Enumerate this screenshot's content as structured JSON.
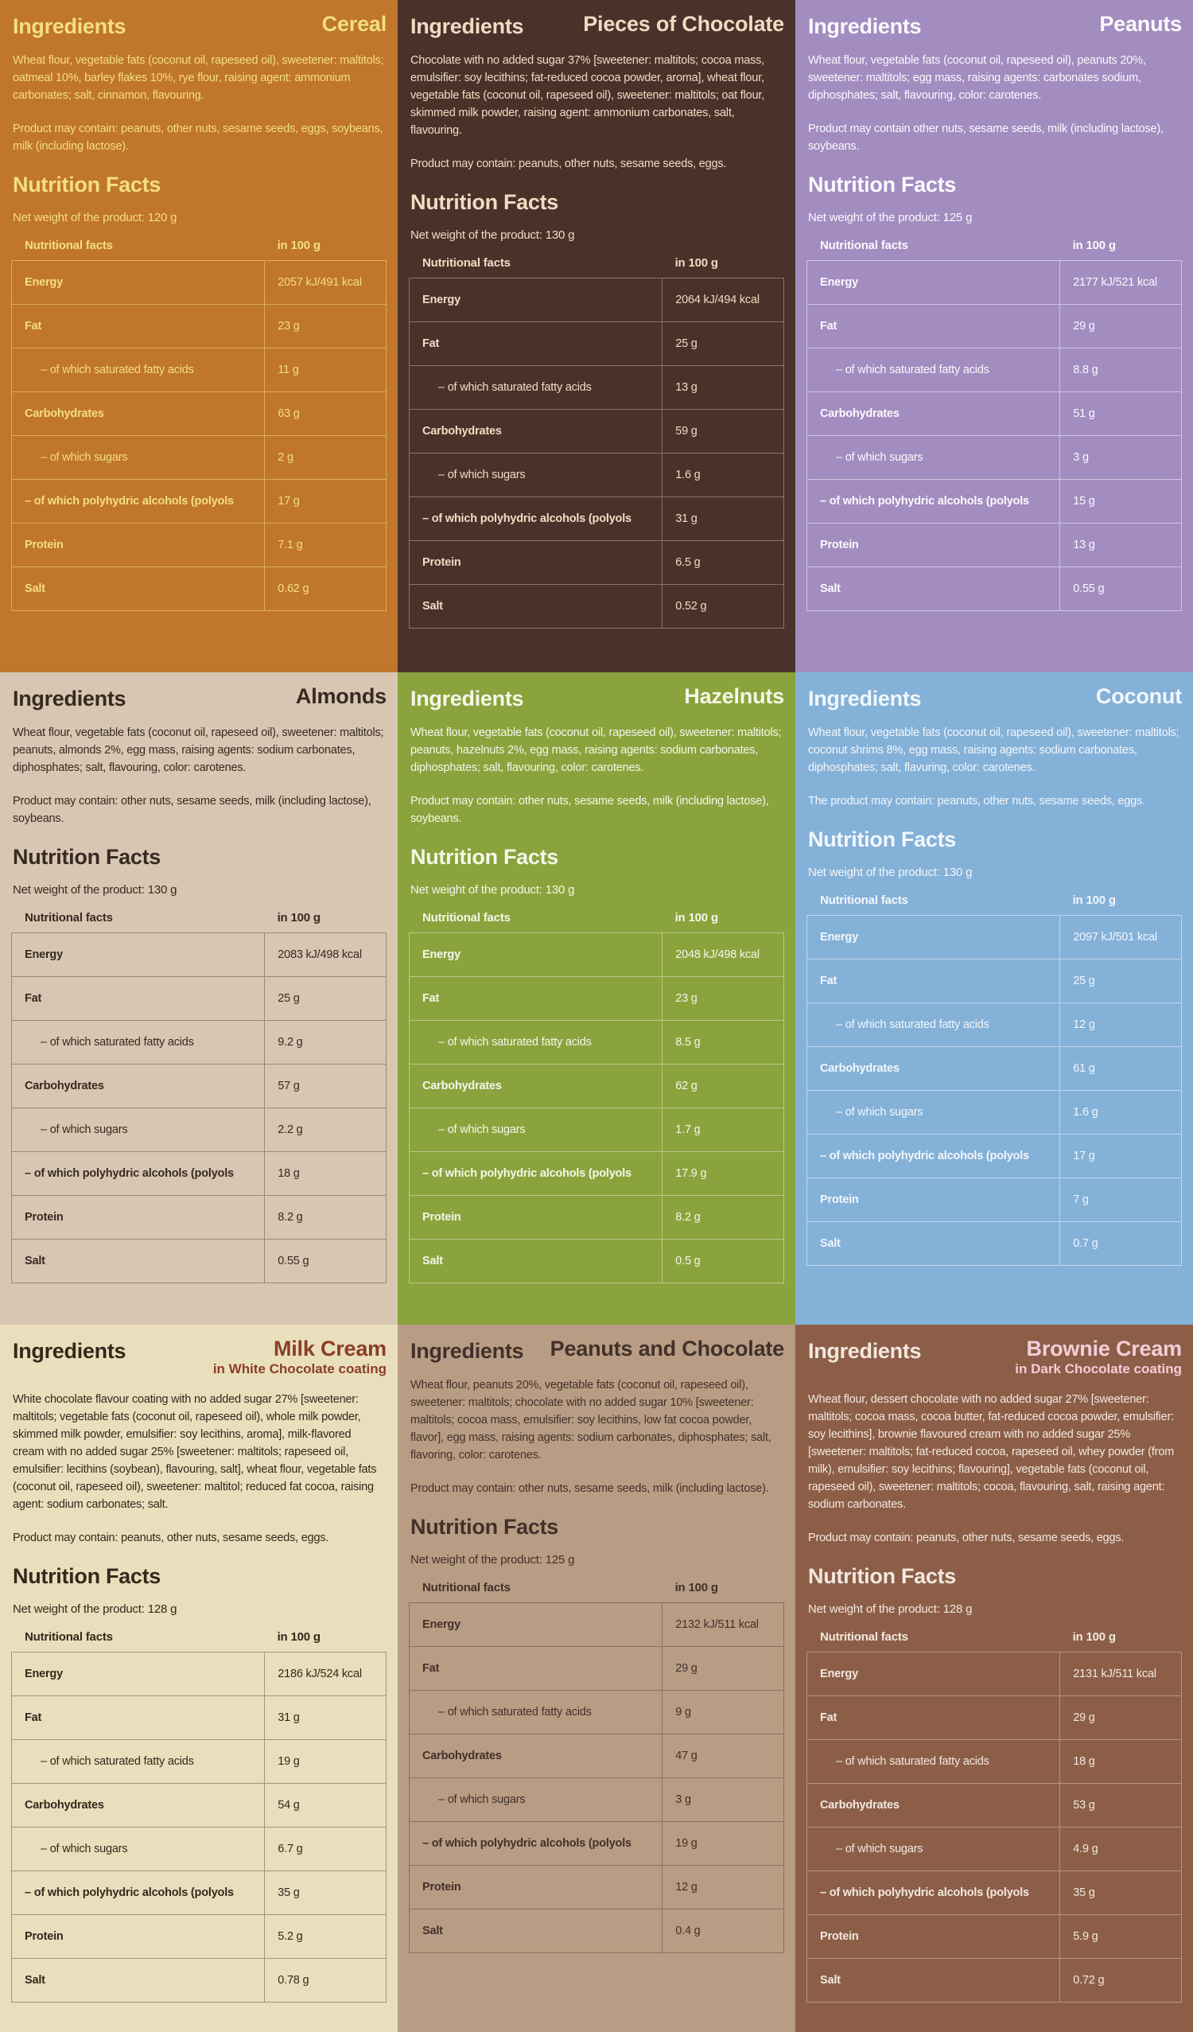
{
  "common": {
    "ingredients_heading": "Ingredients",
    "nutrition_heading": "Nutrition Facts",
    "table_header": {
      "label": "Nutritional facts",
      "unit": "in 100 g"
    },
    "row_labels": [
      "Energy",
      "Fat",
      "– of which saturated fatty acids",
      "Carbohydrates",
      "– of which sugars",
      "– of which polyhydric alcohols (polyols",
      "Protein",
      "Salt"
    ]
  },
  "panels": [
    {
      "product": "Cereal",
      "subtitle": "",
      "ingredients": "Wheat flour, vegetable fats (coconut oil, rapeseed oil), sweetener: maltitols; oatmeal 10%, barley flakes 10%, rye flour, raising agent: ammonium carbonates; salt, cinnamon, flavouring.",
      "may_contain": "Product may contain: peanuts, other nuts, sesame seeds, eggs, soybeans, milk (including lactose).",
      "net_weight": "Net weight of the product: 120 g",
      "values": [
        "2057 kJ/491 kcal",
        "23 g",
        "11 g",
        "63 g",
        "2 g",
        "17 g",
        "7.1 g",
        "0.62 g"
      ],
      "colors": {
        "bg": "#c0762c",
        "fg": "#f3df81",
        "name": "#f3df81",
        "line": "rgba(243,223,129,0.55)"
      }
    },
    {
      "product": "Pieces of Chocolate",
      "subtitle": "",
      "ingredients": "Chocolate with no added sugar 37% [sweetener: maltitols; cocoa mass, emulsifier: soy lecithins; fat-reduced cocoa powder, aroma], wheat flour, vegetable fats (coconut oil, rapeseed oil), sweetener: maltitols; oat flour, skimmed milk powder, raising agent: ammonium carbonates, salt, flavouring.",
      "may_contain": "Product may contain: peanuts, other nuts, sesame seeds, eggs.",
      "net_weight": "Net weight of the product: 130 g",
      "values": [
        "2064 kJ/494 kcal",
        "25 g",
        "13 g",
        "59 g",
        "1.6 g",
        "31 g",
        "6.5 g",
        "0.52 g"
      ],
      "colors": {
        "bg": "#483229",
        "fg": "#f0dcc3",
        "name": "#f0dcc3",
        "line": "rgba(240,220,195,0.4)"
      }
    },
    {
      "product": "Peanuts",
      "subtitle": "",
      "ingredients": "Wheat flour, vegetable fats (coconut oil, rapeseed oil), peanuts 20%, sweetener: maltitols; egg mass, raising agents: carbonates sodium, diphosphates; salt, flavouring, color: carotenes.",
      "may_contain": "Product may contain other nuts, sesame seeds, milk (including lactose), soybeans.",
      "net_weight": "Net weight of the product: 125 g",
      "values": [
        "2177 kJ/521 kcal",
        "29 g",
        "8.8 g",
        "51 g",
        "3 g",
        "15 g",
        "13 g",
        "0.55 g"
      ],
      "colors": {
        "bg": "#a28cc0",
        "fg": "#fbfafd",
        "name": "#fbfafd",
        "line": "rgba(255,255,255,0.5)"
      }
    },
    {
      "product": "Almonds",
      "subtitle": "",
      "ingredients": "Wheat flour, vegetable fats (coconut oil, rapeseed oil), sweetener: maltitols; peanuts, almonds 2%, egg mass, raising agents: sodium carbonates, diphosphates; salt, flavouring, color: carotenes.",
      "may_contain": "Product may contain: other nuts, sesame seeds, milk (including lactose), soybeans.",
      "net_weight": "Net weight of the product: 130 g",
      "values": [
        "2083 kJ/498 kcal",
        "25 g",
        "9.2 g",
        "57 g",
        "2.2 g",
        "18 g",
        "8.2 g",
        "0.55 g"
      ],
      "colors": {
        "bg": "#d8c6b2",
        "fg": "#362a21",
        "name": "#362a21",
        "line": "rgba(54,42,33,0.4)"
      }
    },
    {
      "product": "Hazelnuts",
      "subtitle": "",
      "ingredients": "Wheat flour, vegetable fats (coconut oil, rapeseed oil), sweetener: maltitols; peanuts, hazelnuts 2%, egg mass, raising agents: sodium carbonates, diphosphates; salt, flavouring, color: carotenes.",
      "may_contain": "Product may contain: other nuts, sesame seeds, milk (including lactose), soybeans.",
      "net_weight": "Net weight of the product: 130 g",
      "values": [
        "2048 kJ/498 kcal",
        "23 g",
        "8.5 g",
        "62 g",
        "1.7 g",
        "17.9 g",
        "8.2 g",
        "0.5 g"
      ],
      "colors": {
        "bg": "#8aa33d",
        "fg": "#f6f6e8",
        "name": "#f6f6e8",
        "line": "rgba(246,246,232,0.45)"
      }
    },
    {
      "product": "Coconut",
      "subtitle": "",
      "ingredients": "Wheat flour, vegetable fats (coconut oil, rapeseed oil), sweetener: maltitols; coconut shrims 8%, egg mass, raising agents: sodium carbonates, diphosphates; salt, flavuring, color: carotenes.",
      "may_contain": "The product may contain: peanuts, other nuts, sesame seeds, eggs.",
      "net_weight": "Net weight of the product: 130 g",
      "values": [
        "2097 kJ/501 kcal",
        "25 g",
        "12 g",
        "61 g",
        "1.6 g",
        "17 g",
        "7 g",
        "0.7 g"
      ],
      "colors": {
        "bg": "#84b1d8",
        "fg": "#f2f7fb",
        "name": "#f2f7fb",
        "line": "rgba(242,247,251,0.55)"
      }
    },
    {
      "product": "Milk Cream",
      "subtitle": "in White Chocolate coating",
      "ingredients": "White chocolate flavour coating with no added sugar 27% [sweetener: maltitols; vegetable fats (coconut oil, rapeseed oil), whole milk powder, skimmed milk powder, emulsifier: soy lecithins, aroma], milk-flavored cream with no added sugar 25% [sweetener: maltitols; rapeseed oil, emulsifier: lecithins (soybean), flavouring, salt], wheat flour, vegetable fats (coconut oil, rapeseed oil), sweetener: maltitol; reduced fat cocoa, raising agent: sodium carbonates; salt.",
      "may_contain": "Product may contain: peanuts, other nuts, sesame seeds, eggs.",
      "net_weight": "Net weight of the product: 128 g",
      "values": [
        "2186 kJ/524 kcal",
        "31 g",
        "19 g",
        "54 g",
        "6.7 g",
        "35 g",
        "5.2 g",
        "0.78 g"
      ],
      "colors": {
        "bg": "#e9dfbc",
        "fg": "#33291d",
        "name": "#8a3e26",
        "line": "rgba(51,41,29,0.4)"
      }
    },
    {
      "product": "Peanuts and Chocolate",
      "subtitle": "",
      "ingredients": "Wheat flour, peanuts 20%, vegetable fats (coconut oil, rapeseed oil), sweetener: maltitols; chocolate with no added sugar 10% [sweetener: maltitols; cocoa mass, emulsifier: soy lecithins, low fat cocoa powder, flavor], egg mass, raising agents: sodium carbonates, diphosphates; salt, flavoring, color: carotenes.",
      "may_contain": "Product may contain: other nuts, sesame seeds, milk (including lactose).",
      "net_weight": "Net weight of the product: 125 g",
      "values": [
        "2132 kJ/511 kcal",
        "29 g",
        "9 g",
        "47 g",
        "3 g",
        "19 g",
        "12 g",
        "0.4 g"
      ],
      "colors": {
        "bg": "#b89d84",
        "fg": "#43302a",
        "name": "#43302a",
        "line": "rgba(67,48,42,0.4)"
      }
    },
    {
      "product": "Brownie Cream",
      "subtitle": "in Dark Chocolate coating",
      "ingredients": "Wheat flour, dessert chocolate with no added sugar 27% [sweetener: maltitols; cocoa mass, cocoa butter, fat-reduced cocoa powder, emulsifier: soy lecithins], brownie flavoured cream with no added sugar 25% [sweetener: maltitols; fat-reduced cocoa, rapeseed oil, whey powder (from milk), emulsifier: soy lecithins; flavouring], vegetable fats (coconut oil, rapeseed oil), sweetener: maltitols; cocoa, flavouring, salt, raising agent: sodium carbonates.",
      "may_contain": "Product may contain: peanuts, other nuts, sesame seeds, eggs.",
      "net_weight": "Net weight of the product: 128 g",
      "values": [
        "2131 kJ/511 kcal",
        "29 g",
        "18 g",
        "53 g",
        "4.9 g",
        "35 g",
        "5.9 g",
        "0.72 g"
      ],
      "colors": {
        "bg": "#8c5e48",
        "fg": "#f2e8de",
        "name": "#f4cdd7",
        "line": "rgba(242,232,222,0.4)"
      }
    }
  ]
}
